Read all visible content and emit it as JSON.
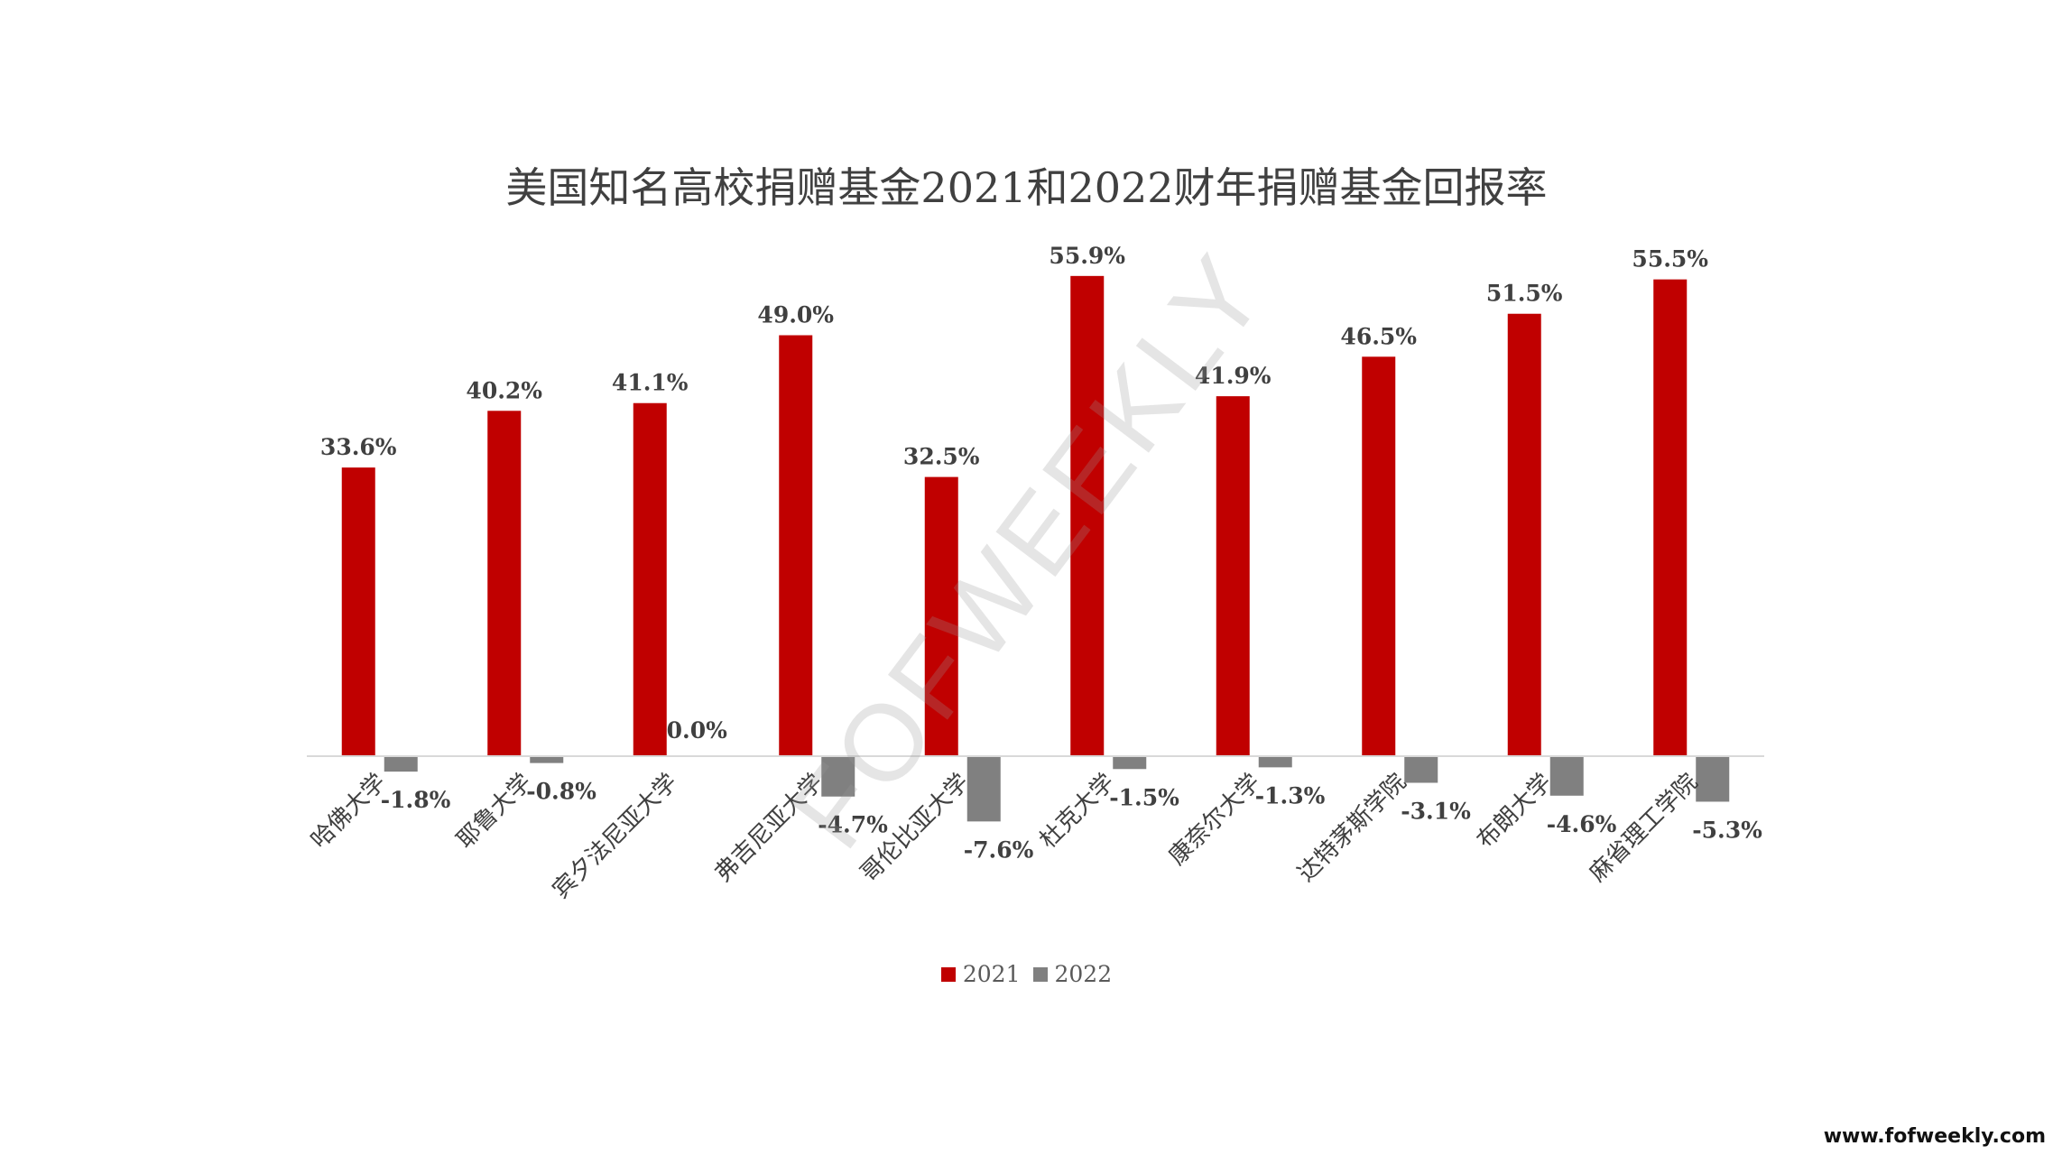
{
  "chart_data": {
    "type": "bar",
    "title": "美国知名高校捐赠基金2021和2022财年捐赠基金回报率",
    "categories": [
      "哈佛大学",
      "耶鲁大学",
      "宾夕法尼亚大学",
      "弗吉尼亚大学",
      "哥伦比亚大学",
      "杜克大学",
      "康奈尔大学",
      "达特茅斯学院",
      "布朗大学",
      "麻省理工学院"
    ],
    "series": [
      {
        "name": "2021",
        "color": "#C00000",
        "values": [
          33.6,
          40.2,
          41.1,
          49.0,
          32.5,
          55.9,
          41.9,
          46.5,
          51.5,
          55.5
        ],
        "labels": [
          "33.6%",
          "40.2%",
          "41.1%",
          "49.0%",
          "32.5%",
          "55.9%",
          "41.9%",
          "46.5%",
          "51.5%",
          "55.5%"
        ]
      },
      {
        "name": "2022",
        "color": "#808080",
        "values": [
          -1.8,
          -0.8,
          0.0,
          -4.7,
          -7.6,
          -1.5,
          -1.3,
          -3.1,
          -4.6,
          -5.3
        ],
        "labels": [
          "-1.8%",
          "-0.8%",
          "0.0%",
          "-4.7%",
          "-7.6%",
          "-1.5%",
          "-1.3%",
          "-3.1%",
          "-4.6%",
          "-5.3%"
        ]
      }
    ],
    "ylim": [
      -10,
      60
    ],
    "xlabel": "",
    "ylabel": "",
    "grid": false,
    "legend": "bottom"
  },
  "watermark": "FOFWEEKLY",
  "site_link": "www.fofweekly.com"
}
